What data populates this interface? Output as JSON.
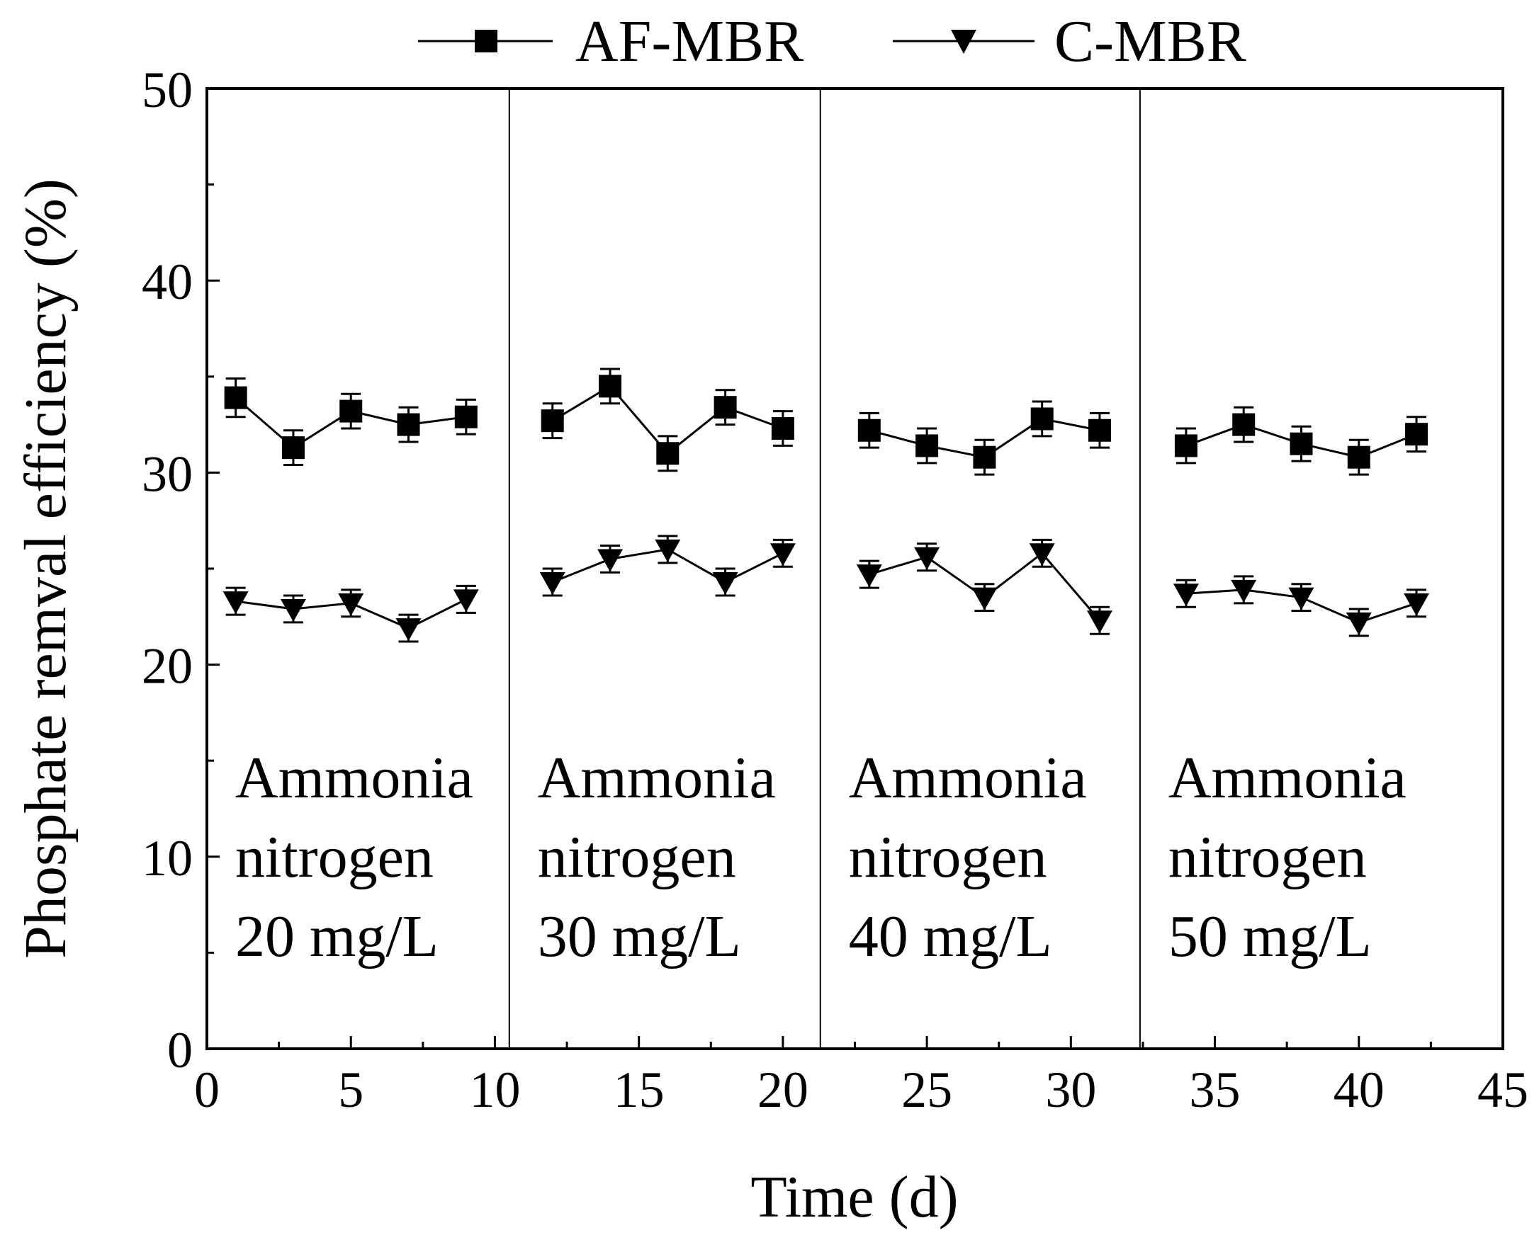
{
  "chart_data": {
    "type": "line",
    "title": "",
    "xlabel": "Time (d)",
    "ylabel": "Phosphate remval efficiency (%)",
    "xlim": [
      0,
      45
    ],
    "ylim": [
      0,
      50
    ],
    "x_ticks": [
      0,
      5,
      10,
      15,
      20,
      25,
      30,
      35,
      40,
      45
    ],
    "y_ticks": [
      0,
      10,
      20,
      30,
      40,
      50
    ],
    "legend_position": "top-center",
    "grid": false,
    "dividers": [
      10.5,
      21.3,
      32.4
    ],
    "regions": [
      {
        "lines": [
          "Ammonia",
          "nitrogen",
          "20 mg/L"
        ]
      },
      {
        "lines": [
          "Ammonia",
          "nitrogen",
          "30 mg/L"
        ]
      },
      {
        "lines": [
          "Ammonia",
          "nitrogen",
          "40 mg/L"
        ]
      },
      {
        "lines": [
          "Ammonia",
          "nitrogen",
          "50 mg/L"
        ]
      }
    ],
    "series": [
      {
        "name": "AF-MBR",
        "marker": "square",
        "color": "#000000",
        "x": [
          1,
          3,
          5,
          7,
          9,
          12,
          14,
          16,
          18,
          20,
          23,
          25,
          27,
          29,
          31,
          34,
          36,
          38,
          40,
          42
        ],
        "values": [
          33.9,
          31.3,
          33.2,
          32.5,
          32.9,
          32.7,
          34.5,
          31.0,
          33.4,
          32.3,
          32.2,
          31.4,
          30.8,
          32.8,
          32.2,
          31.4,
          32.5,
          31.5,
          30.8,
          32.0
        ],
        "error": [
          1.0,
          0.9,
          0.9,
          0.9,
          0.9,
          0.9,
          0.9,
          0.9,
          0.9,
          0.9,
          0.9,
          0.9,
          0.9,
          0.9,
          0.9,
          0.9,
          0.9,
          0.9,
          0.9,
          0.9
        ]
      },
      {
        "name": "C-MBR",
        "marker": "triangle-down",
        "color": "#000000",
        "x": [
          1,
          3,
          5,
          7,
          9,
          12,
          14,
          16,
          18,
          20,
          23,
          25,
          27,
          29,
          31,
          34,
          36,
          38,
          40,
          42
        ],
        "values": [
          23.3,
          22.9,
          23.2,
          21.9,
          23.4,
          24.3,
          25.5,
          26.0,
          24.3,
          25.8,
          24.7,
          25.6,
          23.5,
          25.8,
          22.3,
          23.7,
          23.9,
          23.5,
          22.2,
          23.2
        ],
        "error": [
          0.7,
          0.7,
          0.7,
          0.7,
          0.7,
          0.7,
          0.7,
          0.7,
          0.7,
          0.7,
          0.7,
          0.7,
          0.7,
          0.7,
          0.7,
          0.7,
          0.7,
          0.7,
          0.7,
          0.7
        ]
      }
    ]
  }
}
